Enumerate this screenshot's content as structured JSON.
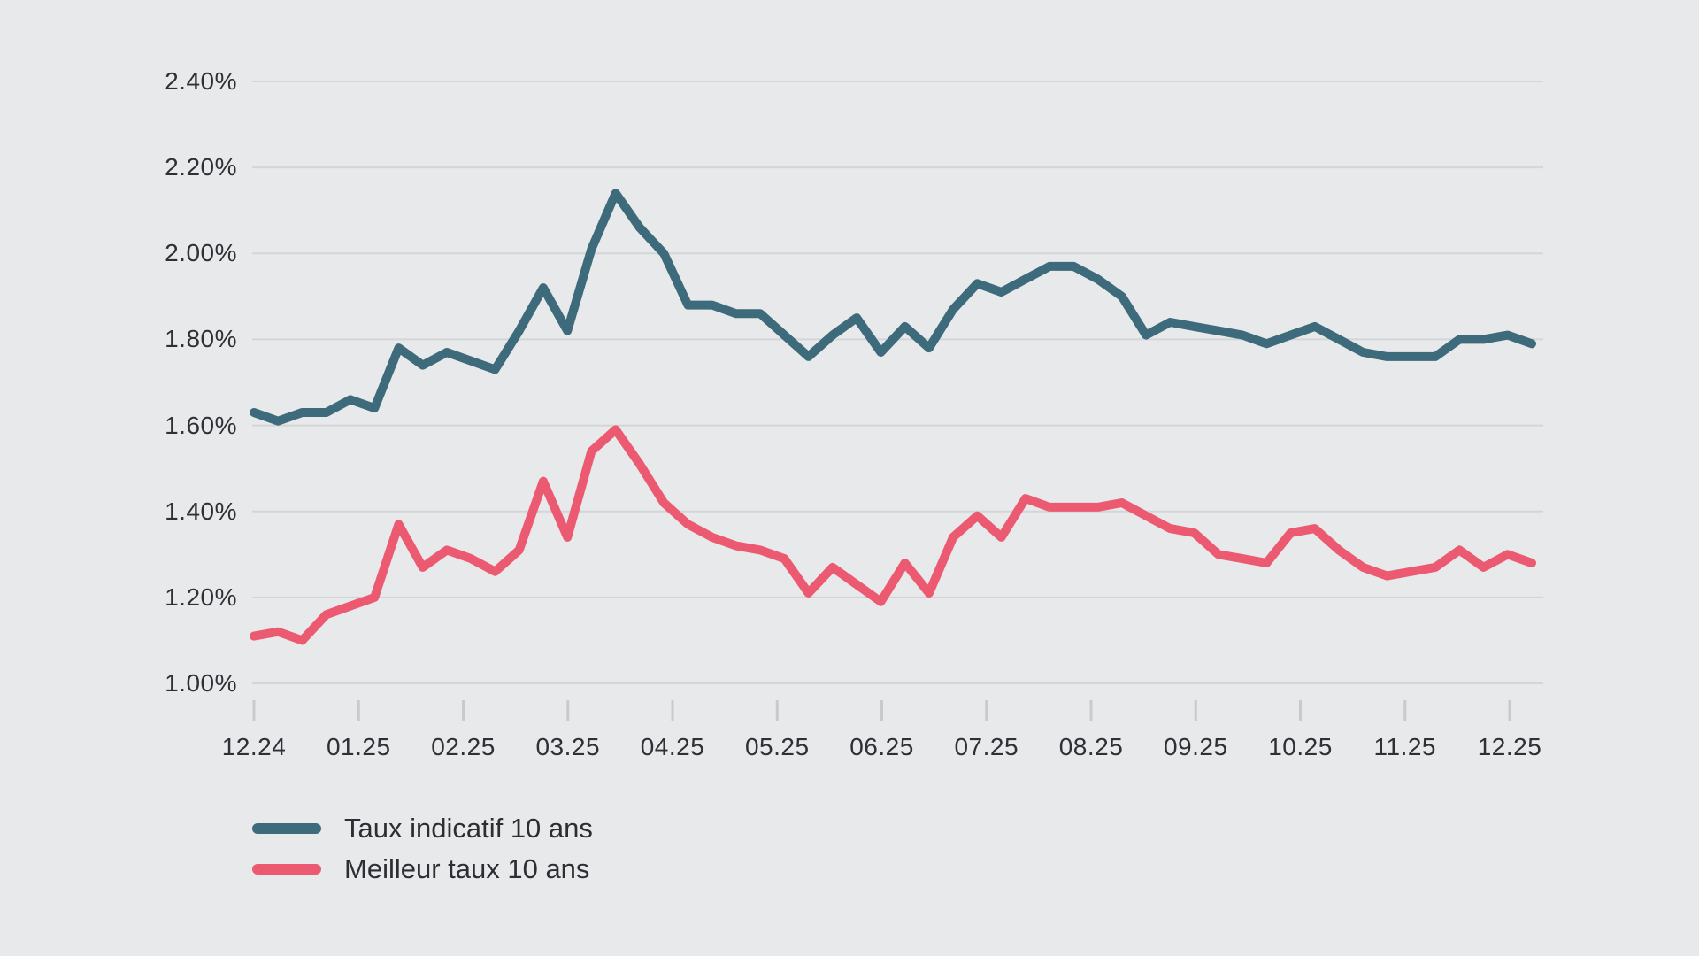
{
  "chart_data": {
    "type": "line",
    "title": "",
    "xlabel": "",
    "ylabel": "",
    "x_tick_labels": [
      "12.24",
      "01.25",
      "02.25",
      "03.25",
      "04.25",
      "05.25",
      "06.25",
      "07.25",
      "08.25",
      "09.25",
      "10.25",
      "11.25",
      "12.25"
    ],
    "y_tick_labels": [
      "2.40%",
      "2.20%",
      "2.00%",
      "1.80%",
      "1.60%",
      "1.40%",
      "1.20%",
      "1.00%"
    ],
    "ylim": [
      1.0,
      2.4
    ],
    "y_tick_step": 0.2,
    "unit": "%",
    "grid": "horizontal",
    "legend_position": "bottom-left",
    "series": [
      {
        "name": "Taux indicatif 10 ans",
        "color": "#3e6b7c",
        "values": [
          1.63,
          1.61,
          1.63,
          1.63,
          1.66,
          1.64,
          1.78,
          1.74,
          1.77,
          1.75,
          1.73,
          1.82,
          1.92,
          1.82,
          2.01,
          2.14,
          2.06,
          2.0,
          1.88,
          1.88,
          1.86,
          1.86,
          1.81,
          1.76,
          1.81,
          1.85,
          1.77,
          1.83,
          1.78,
          1.87,
          1.93,
          1.91,
          1.94,
          1.97,
          1.97,
          1.94,
          1.9,
          1.81,
          1.84,
          1.83,
          1.82,
          1.81,
          1.79,
          1.81,
          1.83,
          1.8,
          1.77,
          1.76,
          1.76,
          1.76,
          1.8,
          1.8,
          1.81,
          1.79
        ]
      },
      {
        "name": "Meilleur taux 10 ans",
        "color": "#ec5a72",
        "values": [
          1.11,
          1.12,
          1.1,
          1.16,
          1.18,
          1.2,
          1.37,
          1.27,
          1.31,
          1.29,
          1.26,
          1.31,
          1.47,
          1.34,
          1.54,
          1.59,
          1.51,
          1.42,
          1.37,
          1.34,
          1.32,
          1.31,
          1.29,
          1.21,
          1.27,
          1.23,
          1.19,
          1.28,
          1.21,
          1.34,
          1.39,
          1.34,
          1.43,
          1.41,
          1.41,
          1.41,
          1.42,
          1.39,
          1.36,
          1.35,
          1.3,
          1.29,
          1.28,
          1.35,
          1.36,
          1.31,
          1.27,
          1.25,
          1.26,
          1.27,
          1.31,
          1.27,
          1.3,
          1.28
        ]
      }
    ]
  },
  "legend": {
    "items": [
      {
        "label": "Taux indicatif 10 ans",
        "color": "#3e6b7c"
      },
      {
        "label": "Meilleur taux 10 ans",
        "color": "#ec5a72"
      }
    ]
  },
  "colors": {
    "background": "#e8e9ea",
    "gridline": "#d4d5d8",
    "tick": "#c9cacd",
    "axis_text": "#2e3036"
  }
}
